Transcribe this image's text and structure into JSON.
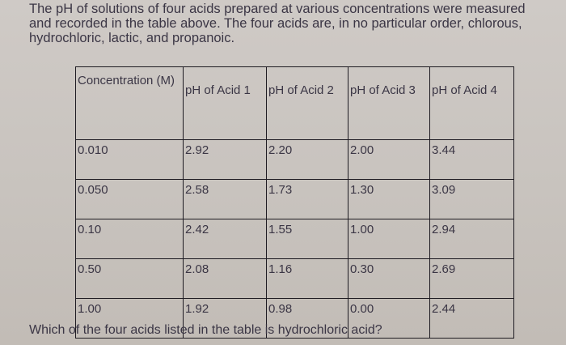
{
  "intro": {
    "line1": "The pH of solutions of four acids prepared at various concentrations were measured",
    "line2": "and recorded in the table above. The four acids are, in no particular order, chlorous,",
    "line3": "hydrochloric, lactic, and propanoic."
  },
  "table": {
    "headers": [
      "Concentration (M)",
      "pH of Acid 1",
      "pH of Acid 2",
      "pH of Acid 3",
      "pH of Acid 4"
    ],
    "rows": [
      [
        "0.010",
        "2.92",
        "2.20",
        "2.00",
        "3.44"
      ],
      [
        "0.050",
        "2.58",
        "1.73",
        "1.30",
        "3.09"
      ],
      [
        "0.10",
        "2.42",
        "1.55",
        "1.00",
        "2.94"
      ],
      [
        "0.50",
        "2.08",
        "1.16",
        "0.30",
        "2.69"
      ],
      [
        "1.00",
        "1.92",
        "0.98",
        "0.00",
        "2.44"
      ]
    ]
  },
  "question": "Which of the four acids listed in the table is hydrochloric acid?"
}
